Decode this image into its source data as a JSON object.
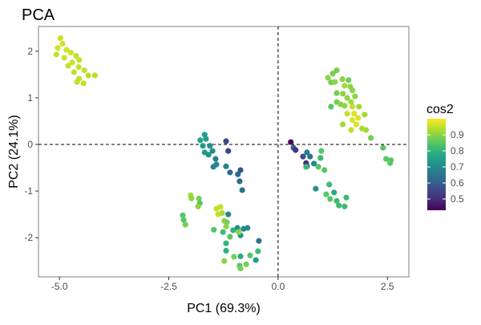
{
  "chart_data": {
    "type": "scatter",
    "title": "PCA",
    "xlabel": "PC1 (69.3%)",
    "ylabel": "PC2 (24.1%)",
    "xlim": [
      -5.48,
      2.99
    ],
    "ylim": [
      -2.84,
      2.53
    ],
    "xticks": [
      -5.0,
      -2.5,
      0.0,
      2.5
    ],
    "xtick_labels": [
      "-5.0",
      "-2.5",
      "0.0",
      "2.5"
    ],
    "yticks": [
      -2,
      -1,
      0,
      1,
      2
    ],
    "ytick_labels": [
      "-2",
      "-1",
      "0",
      "1",
      "2"
    ],
    "grid": false,
    "reference_lines": {
      "x": 0,
      "y": 0,
      "style": "dashed"
    },
    "legend": {
      "title": "cos2",
      "placement": "right",
      "type": "colorbar",
      "colormap": "viridis",
      "range": [
        0.43,
        1.0
      ],
      "ticks": [
        0.5,
        0.6,
        0.7,
        0.8,
        0.9
      ],
      "tick_labels": [
        "0.5",
        "0.6",
        "0.7",
        "0.8",
        "0.9"
      ]
    },
    "point_fields": [
      "PC1",
      "PC2",
      "cos2"
    ],
    "points": [
      [
        -4.98,
        2.28,
        0.96
      ],
      [
        -4.93,
        2.16,
        0.96
      ],
      [
        -5.04,
        2.07,
        0.96
      ],
      [
        -4.84,
        2.03,
        0.96
      ],
      [
        -4.74,
        1.97,
        0.96
      ],
      [
        -5.07,
        1.93,
        0.95
      ],
      [
        -4.62,
        1.9,
        0.95
      ],
      [
        -4.89,
        1.86,
        0.96
      ],
      [
        -4.55,
        1.81,
        0.95
      ],
      [
        -4.71,
        1.76,
        0.96
      ],
      [
        -4.8,
        1.69,
        0.95
      ],
      [
        -4.56,
        1.66,
        0.95
      ],
      [
        -4.43,
        1.59,
        0.95
      ],
      [
        -4.67,
        1.55,
        0.95
      ],
      [
        -4.34,
        1.48,
        0.94
      ],
      [
        -4.55,
        1.41,
        0.95
      ],
      [
        -4.19,
        1.48,
        0.94
      ],
      [
        -4.45,
        1.31,
        0.95
      ],
      [
        -4.6,
        1.34,
        0.95
      ],
      [
        -1.68,
        0.21,
        0.75
      ],
      [
        -1.78,
        0.09,
        0.76
      ],
      [
        -1.65,
        0.12,
        0.75
      ],
      [
        -1.72,
        -0.03,
        0.74
      ],
      [
        -1.56,
        -0.03,
        0.72
      ],
      [
        -1.68,
        -0.17,
        0.74
      ],
      [
        -1.59,
        -0.22,
        0.73
      ],
      [
        -1.5,
        -0.14,
        0.72
      ],
      [
        -1.43,
        -0.31,
        0.68
      ],
      [
        -1.41,
        -0.43,
        0.7
      ],
      [
        -1.48,
        -0.48,
        0.69
      ],
      [
        -1.19,
        0.07,
        0.55
      ],
      [
        -1.14,
        -0.14,
        0.55
      ],
      [
        -1.19,
        -0.47,
        0.68
      ],
      [
        -1.1,
        -0.6,
        0.63
      ],
      [
        -0.86,
        -0.55,
        0.58
      ],
      [
        -0.92,
        -0.64,
        0.62
      ],
      [
        -0.88,
        -0.79,
        0.63
      ],
      [
        -0.82,
        -0.98,
        0.65
      ],
      [
        -2.0,
        -1.09,
        0.92
      ],
      [
        -1.81,
        -1.16,
        0.88
      ],
      [
        -1.98,
        -1.16,
        0.9
      ],
      [
        -1.79,
        -1.26,
        0.85
      ],
      [
        -1.83,
        -1.33,
        0.9
      ],
      [
        -2.18,
        -1.52,
        0.85
      ],
      [
        -2.16,
        -1.62,
        0.85
      ],
      [
        -2.12,
        -1.72,
        0.88
      ],
      [
        -1.41,
        -1.38,
        0.95
      ],
      [
        -1.32,
        -1.34,
        0.95
      ],
      [
        -1.37,
        -1.5,
        0.95
      ],
      [
        -1.28,
        -1.47,
        0.93
      ],
      [
        -1.14,
        -1.5,
        0.7
      ],
      [
        -1.23,
        -1.64,
        0.9
      ],
      [
        -1.17,
        -1.67,
        0.88
      ],
      [
        -1.19,
        -1.76,
        0.9
      ],
      [
        -1.47,
        -1.83,
        0.85
      ],
      [
        -1.26,
        -1.88,
        0.82
      ],
      [
        -1.03,
        -1.84,
        0.8
      ],
      [
        -0.93,
        -1.79,
        0.72
      ],
      [
        -0.86,
        -1.95,
        0.72
      ],
      [
        -0.9,
        -1.88,
        0.9
      ],
      [
        -0.79,
        -1.81,
        0.7
      ],
      [
        -0.7,
        -1.79,
        0.7
      ],
      [
        -1.1,
        -1.98,
        0.85
      ],
      [
        -1.19,
        -2.12,
        0.8
      ],
      [
        -0.44,
        -2.07,
        0.65
      ],
      [
        -1.19,
        -2.28,
        0.8
      ],
      [
        -0.46,
        -2.29,
        0.82
      ],
      [
        -1.23,
        -2.5,
        0.9
      ],
      [
        -1.01,
        -2.41,
        0.88
      ],
      [
        -0.86,
        -2.4,
        0.78
      ],
      [
        -0.64,
        -2.38,
        0.85
      ],
      [
        -0.51,
        -2.48,
        0.75
      ],
      [
        -0.88,
        -2.6,
        0.85
      ],
      [
        -0.73,
        -2.57,
        0.88
      ],
      [
        -0.86,
        -2.66,
        0.88
      ],
      [
        1.34,
        1.59,
        0.88
      ],
      [
        1.25,
        1.52,
        0.88
      ],
      [
        1.14,
        1.43,
        0.9
      ],
      [
        1.21,
        1.33,
        0.88
      ],
      [
        1.3,
        1.34,
        0.9
      ],
      [
        1.47,
        1.4,
        0.9
      ],
      [
        1.61,
        1.38,
        0.88
      ],
      [
        1.52,
        1.26,
        0.92
      ],
      [
        1.65,
        1.24,
        0.9
      ],
      [
        1.7,
        1.16,
        0.9
      ],
      [
        1.34,
        1.1,
        0.88
      ],
      [
        1.48,
        1.09,
        0.9
      ],
      [
        1.76,
        1.03,
        0.9
      ],
      [
        1.58,
        1.0,
        0.9
      ],
      [
        1.34,
        0.91,
        0.88
      ],
      [
        1.43,
        0.86,
        0.9
      ],
      [
        1.21,
        0.81,
        0.85
      ],
      [
        1.67,
        0.91,
        0.92
      ],
      [
        1.52,
        0.83,
        0.9
      ],
      [
        1.7,
        0.81,
        0.95
      ],
      [
        1.85,
        0.81,
        0.92
      ],
      [
        1.58,
        0.66,
        0.95
      ],
      [
        1.74,
        0.66,
        0.97
      ],
      [
        1.83,
        0.57,
        0.97
      ],
      [
        1.98,
        0.64,
        0.92
      ],
      [
        1.7,
        0.52,
        0.97
      ],
      [
        1.48,
        0.43,
        0.92
      ],
      [
        1.79,
        0.43,
        0.97
      ],
      [
        1.92,
        0.34,
        0.93
      ],
      [
        1.67,
        0.31,
        0.95
      ],
      [
        2.01,
        0.31,
        0.92
      ],
      [
        2.12,
        0.14,
        0.88
      ],
      [
        2.4,
        -0.07,
        0.85
      ],
      [
        2.47,
        -0.31,
        0.85
      ],
      [
        2.58,
        -0.34,
        0.85
      ],
      [
        2.56,
        -0.4,
        0.85
      ],
      [
        0.29,
        0.05,
        0.45
      ],
      [
        0.35,
        -0.07,
        0.6
      ],
      [
        0.4,
        -0.12,
        0.52
      ],
      [
        0.66,
        -0.17,
        0.68
      ],
      [
        0.57,
        -0.26,
        0.55
      ],
      [
        0.73,
        -0.26,
        0.65
      ],
      [
        0.99,
        -0.14,
        0.85
      ],
      [
        0.97,
        -0.29,
        0.82
      ],
      [
        0.64,
        -0.4,
        0.5
      ],
      [
        0.82,
        -0.41,
        0.7
      ],
      [
        0.66,
        -0.47,
        0.62
      ],
      [
        0.92,
        -0.48,
        0.85
      ],
      [
        0.64,
        -0.48,
        0.82
      ],
      [
        1.06,
        -0.55,
        0.85
      ],
      [
        1.17,
        -0.86,
        0.82
      ],
      [
        0.86,
        -0.95,
        0.72
      ],
      [
        1.1,
        -1.07,
        0.85
      ],
      [
        1.28,
        -1.03,
        0.78
      ],
      [
        1.19,
        -1.17,
        0.85
      ],
      [
        1.34,
        -1.21,
        0.82
      ],
      [
        1.56,
        -1.14,
        0.82
      ],
      [
        1.39,
        -1.31,
        0.82
      ],
      [
        1.52,
        -1.33,
        0.82
      ]
    ]
  }
}
